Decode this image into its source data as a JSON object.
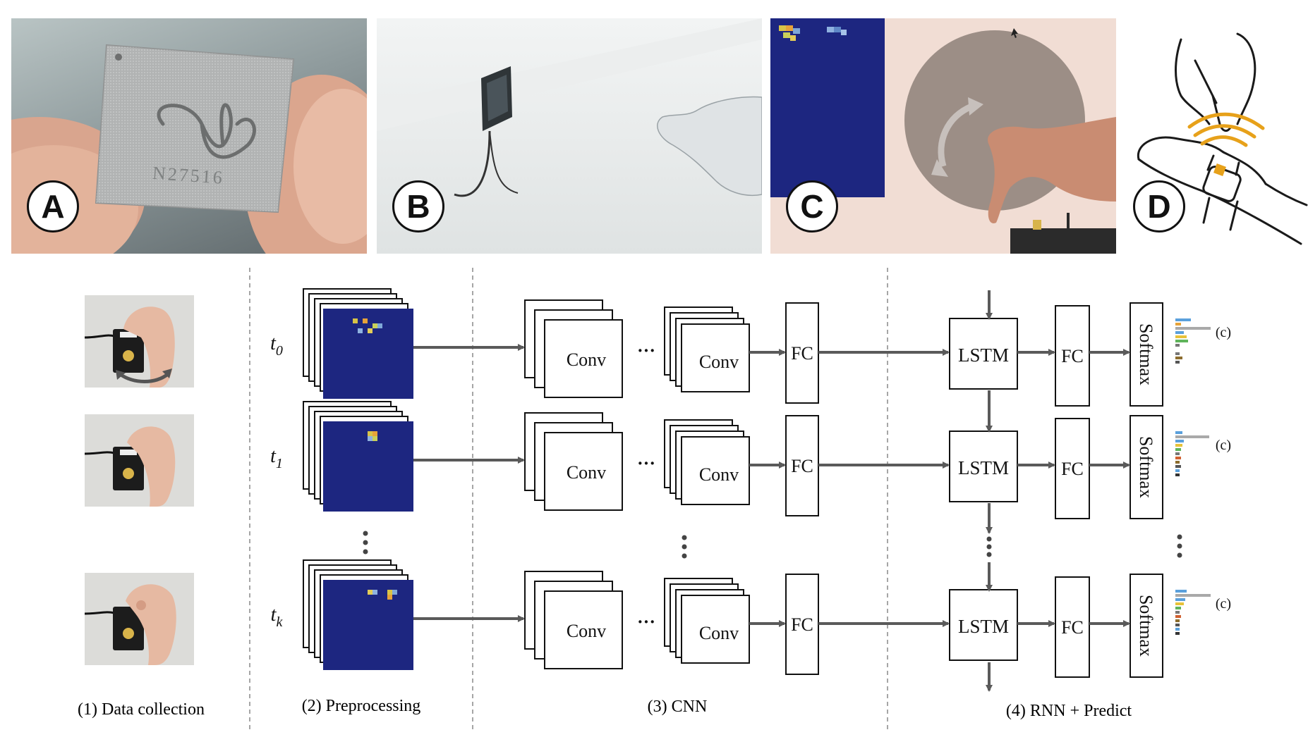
{
  "panels": {
    "a": {
      "badge": "A",
      "chip_text": "N27516"
    },
    "b": {
      "badge": "B"
    },
    "c": {
      "badge": "C"
    },
    "d": {
      "badge": "D"
    }
  },
  "pipeline": {
    "time_labels": [
      {
        "base": "t",
        "sub": "0"
      },
      {
        "base": "t",
        "sub": "1"
      },
      {
        "base": "t",
        "sub": "k"
      }
    ],
    "conv_label": "Conv",
    "fc_label": "FC",
    "lstm_label": "LSTM",
    "softmax_label": "Softmax",
    "class_label": "(c)",
    "dots": "···",
    "stages": [
      "(1) Data collection",
      "(2) Preprocessing",
      "(3) CNN",
      "(4) RNN + Predict"
    ]
  },
  "colors": {
    "accent_dark_blue": "#1d2680",
    "arrow_gray": "#5a5a5a",
    "wave_red": "#e0473f",
    "wave_blue": "#6cc3e6",
    "signal_orange": "#e7a11a"
  }
}
